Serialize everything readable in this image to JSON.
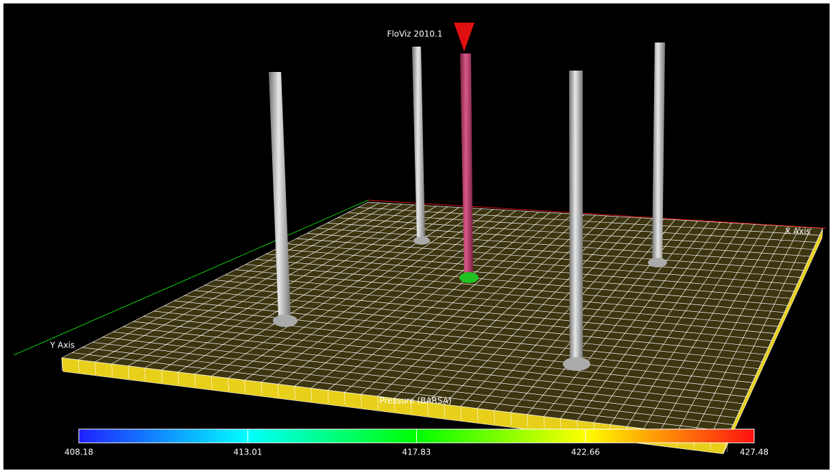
{
  "title": "FloViz 2010.1",
  "axes": {
    "x_label": "X Axis",
    "y_label": "Y Axis"
  },
  "legend": {
    "title": "Pressure (BARSA)",
    "range": [
      408.18,
      427.48
    ],
    "ticks": [
      408.18,
      413.01,
      417.83,
      422.66,
      427.48
    ]
  }
}
